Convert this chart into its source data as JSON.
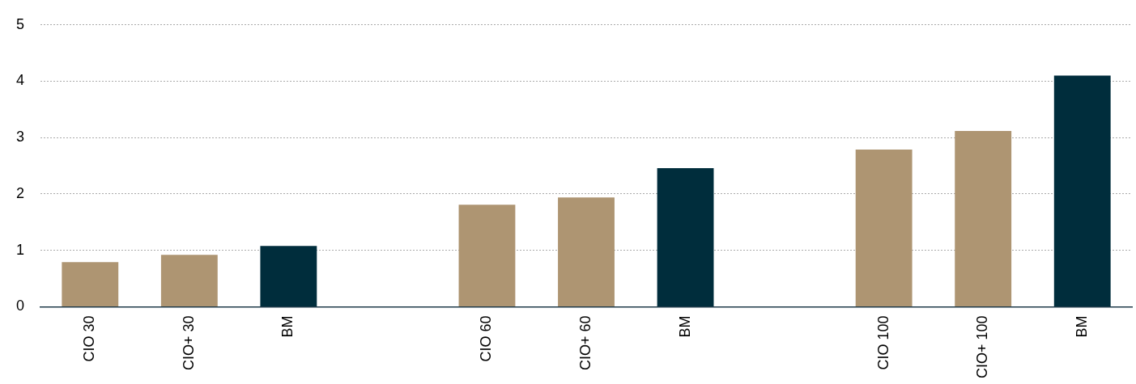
{
  "chart_data": {
    "type": "bar",
    "categories": [
      "CIO 30",
      "CIO+ 30",
      "BM",
      null,
      "CIO 60",
      "CIO+ 60",
      "BM",
      null,
      "CIO 100",
      "CIO+ 100",
      "BM"
    ],
    "values": [
      0.79,
      0.92,
      1.08,
      null,
      1.81,
      1.94,
      2.46,
      null,
      2.79,
      3.12,
      4.1
    ],
    "colors": [
      "#ae9572",
      "#ae9572",
      "#002d3c",
      "#ae9572",
      "#ae9572",
      "#ae9572",
      "#002d3c",
      "#ae9572",
      "#ae9572",
      "#ae9572",
      "#002d3c"
    ],
    "ylim": [
      0,
      5
    ],
    "yticks": [
      0,
      1,
      2,
      3,
      4,
      5
    ],
    "grid": "y",
    "legend": false
  }
}
